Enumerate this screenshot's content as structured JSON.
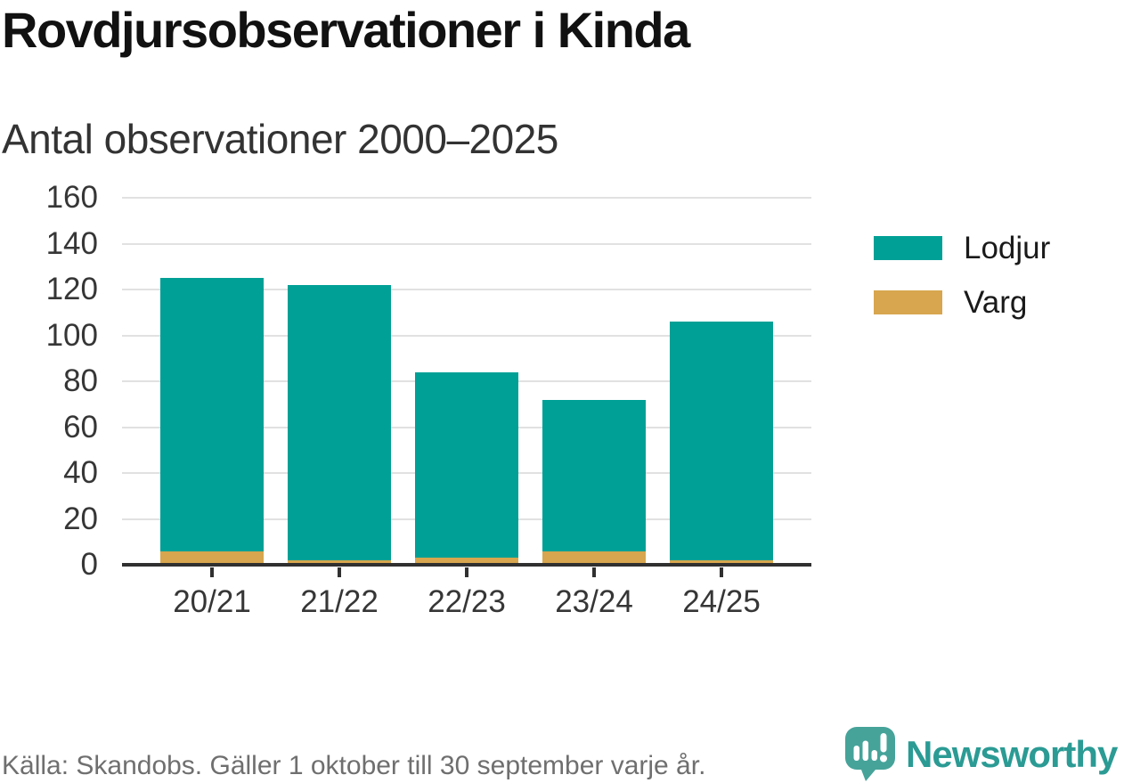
{
  "title": "Rovdjursobservationer i Kinda",
  "subtitle": "Antal observationer 2000–2025",
  "legend": [
    {
      "label": "Lodjur",
      "color": "#00A096"
    },
    {
      "label": "Varg",
      "color": "#D7A64E"
    }
  ],
  "footer": {
    "source": "Källa: Skandobs. Gäller 1 oktober till 30 september varje år.",
    "brand": "Newsworthy"
  },
  "colors": {
    "lodjur_teal": "#00A096",
    "varg_gold": "#D7A64E",
    "grid": "#E1E1E1",
    "axis": "#303030",
    "axis_text": "#363636",
    "title_text": "#111111",
    "subtitle_text": "#333333",
    "legend_text": "#1A1A1A",
    "source_text": "#6F6F6F",
    "brand_teal": "#2B9B94",
    "logo_bubble": "#46A39A"
  },
  "chart_data": {
    "type": "bar",
    "stacked": true,
    "title": "Rovdjursobservationer i Kinda",
    "subtitle": "Antal observationer 2000–2025",
    "categories": [
      "20/21",
      "21/22",
      "22/23",
      "23/24",
      "24/25"
    ],
    "series": [
      {
        "name": "Varg",
        "color": "#D7A64E",
        "values": [
          6,
          2,
          3,
          6,
          2
        ]
      },
      {
        "name": "Lodjur",
        "color": "#00A096",
        "values": [
          119,
          120,
          81,
          66,
          104
        ]
      }
    ],
    "totals": [
      125,
      122,
      84,
      72,
      106
    ],
    "xlabel": "",
    "ylabel": "",
    "ylim": [
      0,
      160
    ],
    "yticks": [
      0,
      20,
      40,
      60,
      80,
      100,
      120,
      140,
      160
    ],
    "grid": true,
    "legend_position": "right",
    "source": "Källa: Skandobs. Gäller 1 oktober till 30 september varje år."
  }
}
